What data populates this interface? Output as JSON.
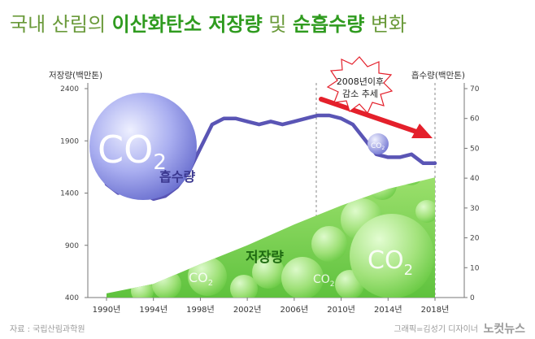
{
  "title": {
    "part1": "국내 산림의 ",
    "part2": "이산화탄소 저장량",
    "part3": " 및 ",
    "part4": "순흡수량",
    "part5": " 변화"
  },
  "colors": {
    "title_dark": "#5a8c2e",
    "title_green": "#2f9b1f",
    "storage_fill": "#7ed957",
    "absorption_line": "#5a55b5",
    "trend_arrow": "#e4202b"
  },
  "annotation": {
    "line1": "2008년이후",
    "line2": "감소 추세"
  },
  "bubble_co2": "CO",
  "bubble_sub": "2",
  "absorption_label": "흡수량",
  "storage_label": "저장량",
  "footer": {
    "source": "자료 : 국립산림과학원",
    "credit": "그래픽=김성기 디자이너",
    "brand": "노컷뉴스"
  },
  "chart_data": {
    "type": "line",
    "x_label_left": "저장량(백만톤)",
    "y_label_right": "흡수량(백만톤)",
    "left_axis": {
      "ylim": [
        400,
        2400
      ],
      "ticks": [
        "2400",
        "1900",
        "1400",
        "900",
        "400"
      ]
    },
    "right_axis": {
      "ylim": [
        0,
        70
      ],
      "ticks": [
        "70",
        "60",
        "50",
        "40",
        "30",
        "20",
        "10",
        "0"
      ]
    },
    "x_ticks": [
      "1990년",
      "1994년",
      "1998년",
      "2002년",
      "2006년",
      "2010년",
      "2014년",
      "2018년"
    ],
    "series": [
      {
        "name": "저장량",
        "type": "area",
        "axis": "left",
        "x": [
          1990,
          1994,
          1998,
          2002,
          2006,
          2010,
          2014,
          2018
        ],
        "values": [
          440,
          530,
          720,
          900,
          1100,
          1280,
          1440,
          1550
        ]
      },
      {
        "name": "흡수량",
        "type": "line",
        "axis": "right",
        "x": [
          1990,
          1991,
          1992,
          1993,
          1994,
          1995,
          1996,
          1997,
          1998,
          1999,
          2000,
          2001,
          2002,
          2003,
          2004,
          2005,
          2006,
          2007,
          2008,
          2009,
          2010,
          2011,
          2012,
          2013,
          2014,
          2015,
          2016,
          2017,
          2018
        ],
        "values": [
          38,
          35,
          36,
          35,
          33,
          34,
          37,
          42,
          50,
          58,
          60,
          60,
          59,
          58,
          59,
          58,
          59,
          60,
          61,
          61,
          60,
          58,
          53,
          48,
          47,
          47,
          48,
          45,
          45
        ]
      }
    ]
  }
}
